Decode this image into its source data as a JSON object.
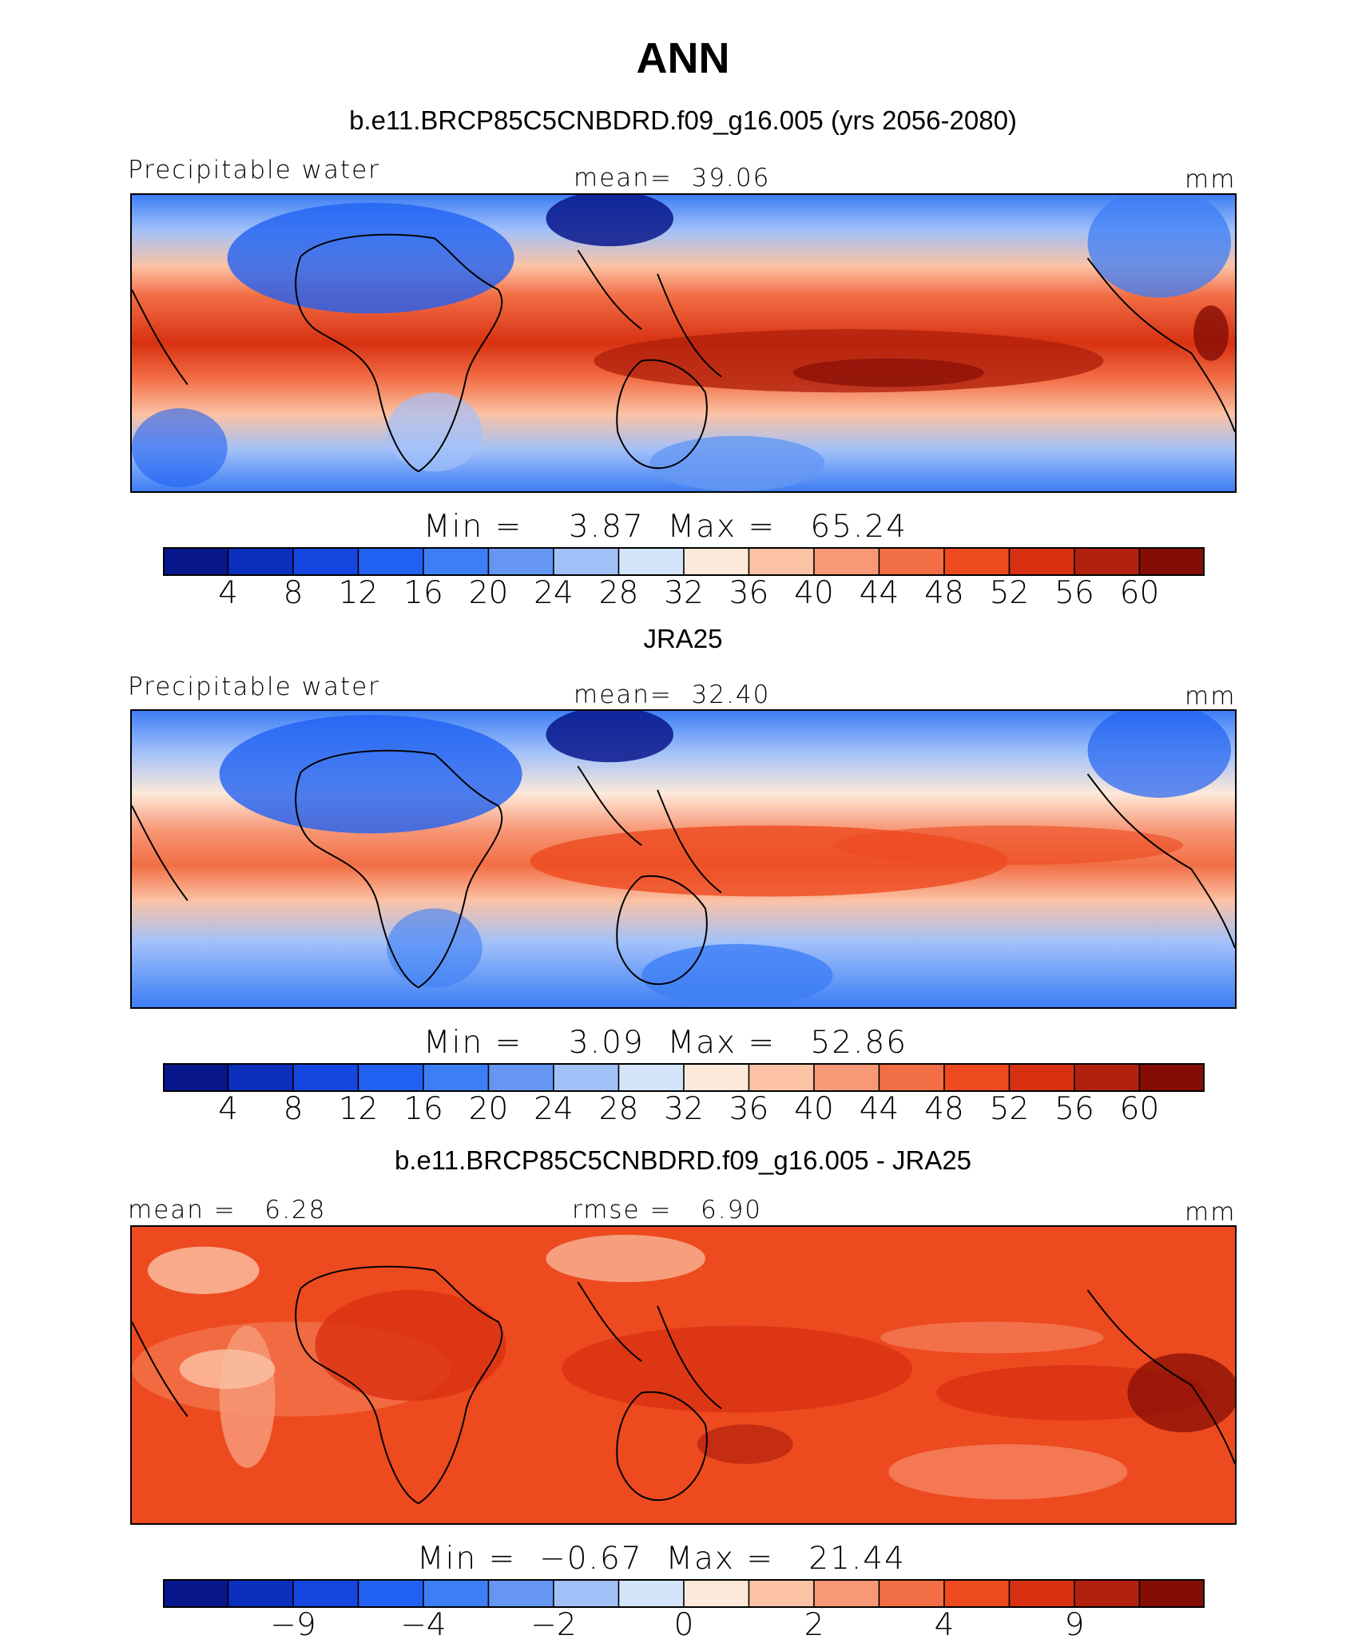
{
  "title": "ANN",
  "units": "mm",
  "colorbar_colors": [
    "#08168c",
    "#0b2fbd",
    "#1546e0",
    "#2162f2",
    "#3d7ef5",
    "#6597f2",
    "#a2c1f9",
    "#d3e4fb",
    "#fde9d9",
    "#fbc2a5",
    "#f79877",
    "#f26e45",
    "#ed4a1f",
    "#d83112",
    "#b2210d",
    "#850d05"
  ],
  "chart_data": [
    {
      "type": "heatmap",
      "panel": "top",
      "title": "b.e11.BRCP85C5CNBDRD.f09_g16.005 (yrs 2056-2080)",
      "variable": "Precipitable water",
      "mean_label": "mean=  39.06",
      "units": "mm",
      "stats_label": "Min =    3.87  Max =   65.24",
      "min": 3.87,
      "max": 65.24,
      "mean": 39.06,
      "colorbar_levels": [
        4,
        8,
        12,
        16,
        20,
        24,
        28,
        32,
        36,
        40,
        44,
        48,
        52,
        56,
        60
      ]
    },
    {
      "type": "heatmap",
      "panel": "middle",
      "title": "JRA25",
      "variable": "Precipitable water",
      "mean_label": "mean=  32.40",
      "units": "mm",
      "stats_label": "Min =    3.09  Max =   52.86",
      "min": 3.09,
      "max": 52.86,
      "mean": 32.4,
      "colorbar_levels": [
        4,
        8,
        12,
        16,
        20,
        24,
        28,
        32,
        36,
        40,
        44,
        48,
        52,
        56,
        60
      ]
    },
    {
      "type": "heatmap",
      "panel": "bottom",
      "title": "b.e11.BRCP85C5CNBDRD.f09_g16.005 - JRA25",
      "mean_label": "mean =   6.28",
      "rmse_label": "rmse =   6.90",
      "units": "mm",
      "stats_label": "Min =  −0.67  Max =   21.44",
      "min": -0.67,
      "max": 21.44,
      "mean": 6.28,
      "rmse": 6.9,
      "colorbar_levels": [
        -9,
        -4,
        -2,
        0,
        2,
        4,
        9
      ]
    }
  ]
}
